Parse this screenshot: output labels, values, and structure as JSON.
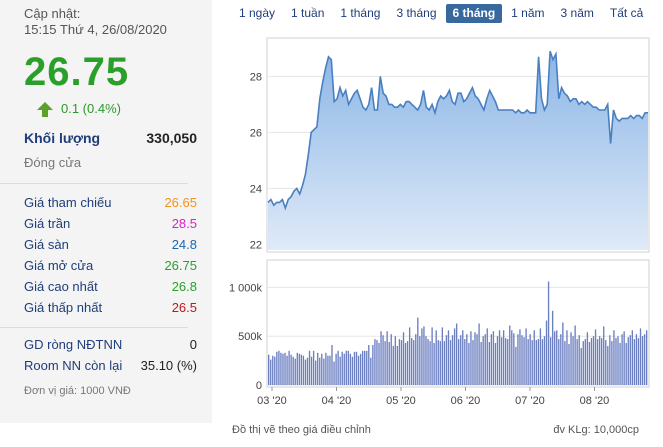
{
  "info": {
    "update_label": "Cập nhật:",
    "update_time": "15:15 Thứ 4, 26/08/2020",
    "price": "26.75",
    "change": "0.1 (0.4%)",
    "volume_label": "Khối lượng",
    "volume_value": "330,050",
    "close_label": "Đóng cửa",
    "ref_label": "Giá tham chiếu",
    "ref_value": "26.65",
    "ceil_label": "Giá trần",
    "ceil_value": "28.5",
    "floor_label": "Giá sàn",
    "floor_value": "24.8",
    "open_label": "Giá mở cửa",
    "open_value": "26.75",
    "high_label": "Giá cao nhất",
    "high_value": "26.8",
    "low_label": "Giá thấp nhất",
    "low_value": "26.5",
    "gd_label": "GD ròng NĐTNN",
    "gd_value": "0",
    "room_label": "Room NN còn lại",
    "room_value": "35.10 (%)",
    "unit_note": "Đơn vị giá: 1000 VNĐ"
  },
  "colors": {
    "ref": "#f0931e",
    "ceil": "#e020c8",
    "floor": "#1f67a8",
    "up": "#2aa02a",
    "down": "#c01818",
    "line": "#4a7fc0",
    "bar": "#6a7ec0"
  },
  "tabs": [
    {
      "label": "1 ngày",
      "active": false
    },
    {
      "label": "1 tuần",
      "active": false
    },
    {
      "label": "1 tháng",
      "active": false
    },
    {
      "label": "3 tháng",
      "active": false
    },
    {
      "label": "6 tháng",
      "active": true
    },
    {
      "label": "1 năm",
      "active": false
    },
    {
      "label": "3 năm",
      "active": false
    },
    {
      "label": "Tất cả",
      "active": false
    }
  ],
  "footer": {
    "left_note": "Đồ thị vẽ theo giá điều chỉnh",
    "right_note": "đv KLg: 10,000cp"
  },
  "chart_data": [
    {
      "type": "area",
      "y_ticks": [
        "22",
        "24",
        "26",
        "28"
      ],
      "ylim": [
        21.8,
        29.3
      ],
      "values": [
        23.5,
        23.6,
        23.4,
        23.5,
        23.5,
        23.6,
        23.3,
        23.6,
        23.7,
        23.9,
        24.0,
        23.8,
        24.1,
        24.5,
        25.2,
        26.0,
        26.1,
        26.2,
        27.2,
        27.8,
        28.3,
        28.7,
        28.6,
        27.1,
        27.2,
        27.6,
        27.3,
        27.5,
        27.0,
        27.2,
        27.4,
        27.5,
        27.2,
        26.9,
        26.8,
        27.0,
        27.6,
        26.8,
        26.8,
        28.0,
        27.4,
        27.3,
        27.0,
        27.0,
        26.9,
        26.9,
        27.0,
        26.9,
        27.1,
        27.1,
        27.0,
        26.9,
        26.8,
        27.0,
        27.5,
        26.9,
        26.8,
        27.0,
        26.7,
        27.1,
        27.3,
        27.2,
        27.3,
        27.5,
        27.1,
        27.0,
        27.4,
        27.4,
        27.1,
        27.2,
        27.4,
        27.6,
        27.3,
        27.2,
        27.0,
        26.8,
        27.2,
        27.5,
        27.3,
        27.1,
        26.8,
        26.8,
        26.8,
        26.8,
        26.8,
        26.8,
        26.7,
        26.8,
        26.7,
        26.7,
        26.8,
        26.7,
        26.7,
        26.7,
        28.7,
        27.2,
        26.8,
        27.0,
        28.9,
        28.6,
        28.8,
        27.2,
        27.6,
        27.4,
        27.3,
        27.1,
        27.2,
        27.2,
        27.0,
        27.1,
        27.0,
        27.1,
        27.0,
        26.9,
        26.9,
        26.8,
        26.8,
        26.8,
        27.0,
        25.6,
        26.8,
        26.5,
        26.4,
        26.5,
        26.5,
        26.5,
        26.6,
        26.5,
        26.6,
        26.6,
        26.5,
        26.7,
        26.7
      ]
    },
    {
      "type": "bar",
      "y_ticks": [
        "0",
        "500k",
        "1 000k"
      ],
      "ylim": [
        0,
        1260000
      ],
      "x_ticks": [
        "03 '20",
        "04 '20",
        "05 '20",
        "06 '20",
        "07 '20",
        "08 '20"
      ],
      "values": [
        310000,
        260000,
        300000,
        290000,
        340000,
        350000,
        330000,
        320000,
        330000,
        300000,
        350000,
        310000,
        290000,
        270000,
        330000,
        320000,
        310000,
        300000,
        260000,
        280000,
        350000,
        290000,
        350000,
        250000,
        330000,
        280000,
        320000,
        270000,
        330000,
        300000,
        300000,
        410000,
        240000,
        320000,
        350000,
        290000,
        340000,
        320000,
        350000,
        350000,
        320000,
        290000,
        340000,
        340000,
        300000,
        320000,
        350000,
        350000,
        350000,
        410000,
        280000,
        410000,
        470000,
        460000,
        430000,
        550000,
        510000,
        450000,
        550000,
        440000,
        520000,
        400000,
        500000,
        400000,
        470000,
        460000,
        540000,
        430000,
        450000,
        590000,
        480000,
        460000,
        520000,
        690000,
        500000,
        580000,
        600000,
        500000,
        470000,
        450000,
        590000,
        430000,
        560000,
        460000,
        450000,
        590000,
        450000,
        510000,
        560000,
        460000,
        510000,
        580000,
        630000,
        470000,
        510000,
        560000,
        470000,
        520000,
        430000,
        550000,
        460000,
        540000,
        520000,
        630000,
        440000,
        500000,
        520000,
        580000,
        440000,
        520000,
        550000,
        430000,
        500000,
        560000,
        490000,
        560000,
        480000,
        470000,
        610000,
        560000,
        530000,
        390000,
        520000,
        570000,
        510000,
        490000,
        580000,
        470000,
        520000,
        460000,
        560000,
        460000,
        470000,
        580000,
        470000,
        500000,
        660000,
        1060000,
        490000,
        760000,
        550000,
        560000,
        470000,
        520000,
        640000,
        450000,
        560000,
        420000,
        540000,
        500000,
        610000,
        470000,
        510000,
        380000,
        450000,
        470000,
        540000,
        440000,
        480000,
        500000,
        570000,
        470000,
        500000,
        480000,
        600000,
        460000,
        400000,
        510000,
        450000,
        560000,
        480000,
        500000,
        430000,
        520000,
        550000,
        430000,
        490000,
        510000,
        560000,
        470000,
        520000,
        480000,
        580000,
        500000,
        520000,
        560000
      ]
    }
  ]
}
